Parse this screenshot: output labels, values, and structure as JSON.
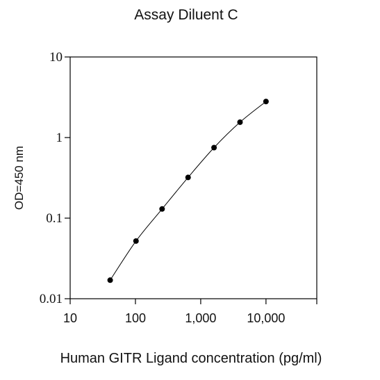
{
  "chart_data": {
    "type": "scatter",
    "title": "Assay Diluent C",
    "xlabel": "Human GITR Ligand concentration (pg/ml)",
    "ylabel": "OD=450 nm",
    "x_scale": "log",
    "y_scale": "log",
    "xlim": [
      10,
      60000
    ],
    "ylim": [
      0.01,
      10
    ],
    "x_ticks": [
      10,
      100,
      1000,
      10000
    ],
    "x_tick_labels": [
      "10",
      "100",
      "1,000",
      "10,000"
    ],
    "y_ticks": [
      0.01,
      0.1,
      1,
      10
    ],
    "y_tick_labels": [
      "0.01",
      "0.1",
      "1",
      "10"
    ],
    "grid": false,
    "series": [
      {
        "x": [
          41,
          102,
          256,
          640,
          1600,
          4000,
          10000
        ],
        "y": [
          0.017,
          0.052,
          0.13,
          0.32,
          0.75,
          1.55,
          2.8
        ],
        "marker": "circle",
        "line": "smooth",
        "color": "#000000"
      }
    ]
  }
}
